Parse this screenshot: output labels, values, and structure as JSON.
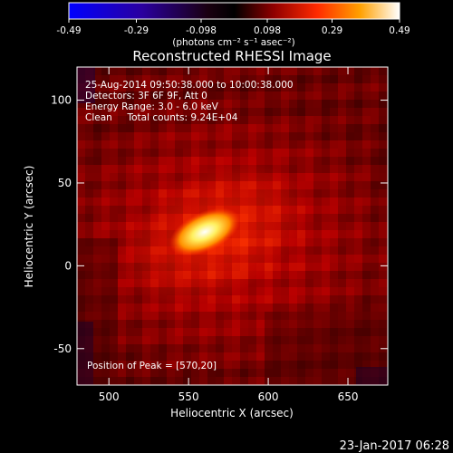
{
  "colorbar": {
    "min": -0.49,
    "max": 0.49,
    "tick_labels": [
      "-0.49",
      "-0.29",
      "-0.098",
      "0.098",
      "0.29",
      "0.49"
    ],
    "unit_label": "(photons cm⁻² s⁻¹ asec⁻²)"
  },
  "chart_data": {
    "type": "heatmap",
    "title": "Reconstructed RHESSI Image",
    "xlabel": "Heliocentric X (arcsec)",
    "ylabel": "Heliocentric Y (arcsec)",
    "xlim": [
      480,
      675
    ],
    "ylim": [
      -72,
      120
    ],
    "x_ticks": [
      500,
      550,
      600,
      650
    ],
    "y_ticks": [
      -50,
      0,
      50,
      100
    ],
    "info_lines": [
      "25-Aug-2014 09:50:38.000 to 10:00:38.000",
      "Detectors: 3F 6F 9F, Att 0",
      "Energy Range: 3.0 - 6.0 keV",
      "Clean     Total counts: 9.24E+04"
    ],
    "peak_label": "Position of Peak = [570,20]",
    "peak": [
      570,
      20
    ],
    "colormap": [
      "#0000ff",
      "#1a0080",
      "#000000",
      "#8b0000",
      "#ff3000",
      "#ff9900",
      "#ffffff"
    ]
  },
  "footer": {
    "timestamp": "23-Jan-2017 06:28"
  }
}
